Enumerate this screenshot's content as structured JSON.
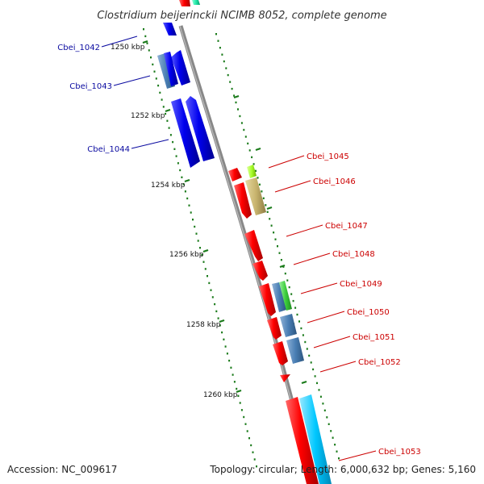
{
  "title": "Clostridium beijerinckii NCIMB 8052, complete genome",
  "footer": {
    "accession": "Accession: NC_009617",
    "topology": "Topology: circular; Length: 6,000,632 bp; Genes: 5,160"
  },
  "colors": {
    "backbone": "#888888",
    "tick": "#1a7a1a",
    "forward_label": "#0a0aa0",
    "reverse_label": "#cc0000",
    "red": "#ff0000",
    "blue": "#0000ee",
    "steel": "#4a7fb5",
    "green": "#3ccf3c",
    "khaki": "#c8b46e",
    "cyan": "#00c8ff",
    "lime": "#a6ff2a"
  },
  "scale_labels": [
    "1250 kbp",
    "1252 kbp",
    "1254 kbp",
    "1256 kbp",
    "1258 kbp",
    "1260 kbp"
  ],
  "forward_genes": [
    {
      "label": "Cbei_1042"
    },
    {
      "label": "Cbei_1043"
    },
    {
      "label": "Cbei_1044"
    }
  ],
  "reverse_genes": [
    {
      "label": "Cbei_1045"
    },
    {
      "label": "Cbei_1046"
    },
    {
      "label": "Cbei_1047"
    },
    {
      "label": "Cbei_1048"
    },
    {
      "label": "Cbei_1049"
    },
    {
      "label": "Cbei_1050"
    },
    {
      "label": "Cbei_1051"
    },
    {
      "label": "Cbei_1052"
    },
    {
      "label": "Cbei_1053"
    }
  ]
}
